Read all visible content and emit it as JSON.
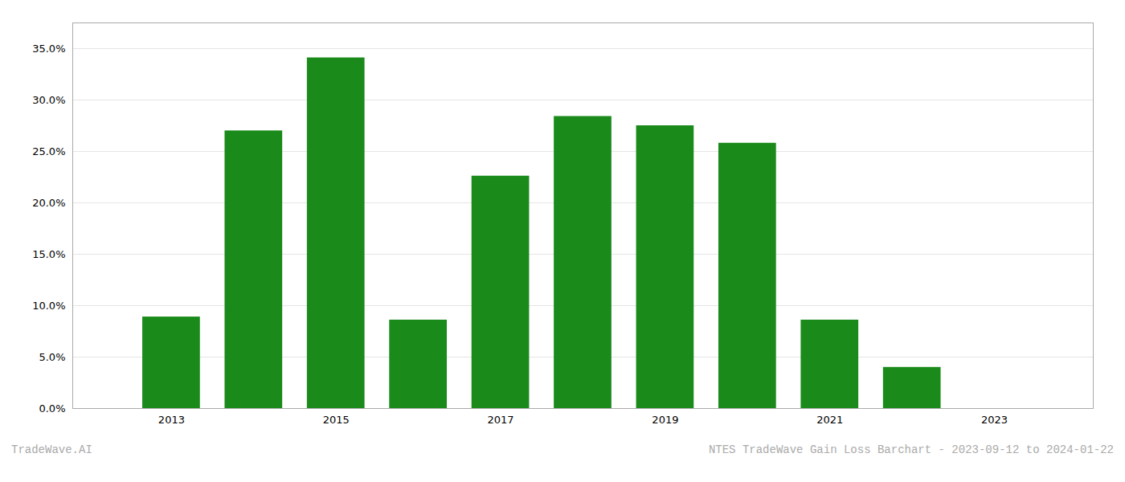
{
  "chart_data": {
    "type": "bar",
    "title": "NTES TradeWave Gain Loss Barchart - 2023-09-12 to 2024-01-22",
    "annotations": [
      "TradeWave.AI"
    ],
    "x": [
      2013,
      2014,
      2015,
      2016,
      2017,
      2018,
      2019,
      2020,
      2021,
      2022
    ],
    "values": [
      0.089,
      0.27,
      0.341,
      0.086,
      0.226,
      0.284,
      0.275,
      0.258,
      0.086,
      0.04
    ],
    "color": "#1a8a1a",
    "xlim": [
      2011.8,
      2024.2
    ],
    "xticks": [
      2013,
      2015,
      2017,
      2019,
      2021,
      2023
    ],
    "ylim": [
      0,
      0.375
    ],
    "yticks": [
      {
        "value": 0.0,
        "label": "0.0%"
      },
      {
        "value": 0.05,
        "label": "5.0%"
      },
      {
        "value": 0.1,
        "label": "10.0%"
      },
      {
        "value": 0.15,
        "label": "15.0%"
      },
      {
        "value": 0.2,
        "label": "20.0%"
      },
      {
        "value": 0.25,
        "label": "25.0%"
      },
      {
        "value": 0.3,
        "label": "30.0%"
      },
      {
        "value": 0.35,
        "label": "35.0%"
      }
    ],
    "grid": true
  }
}
